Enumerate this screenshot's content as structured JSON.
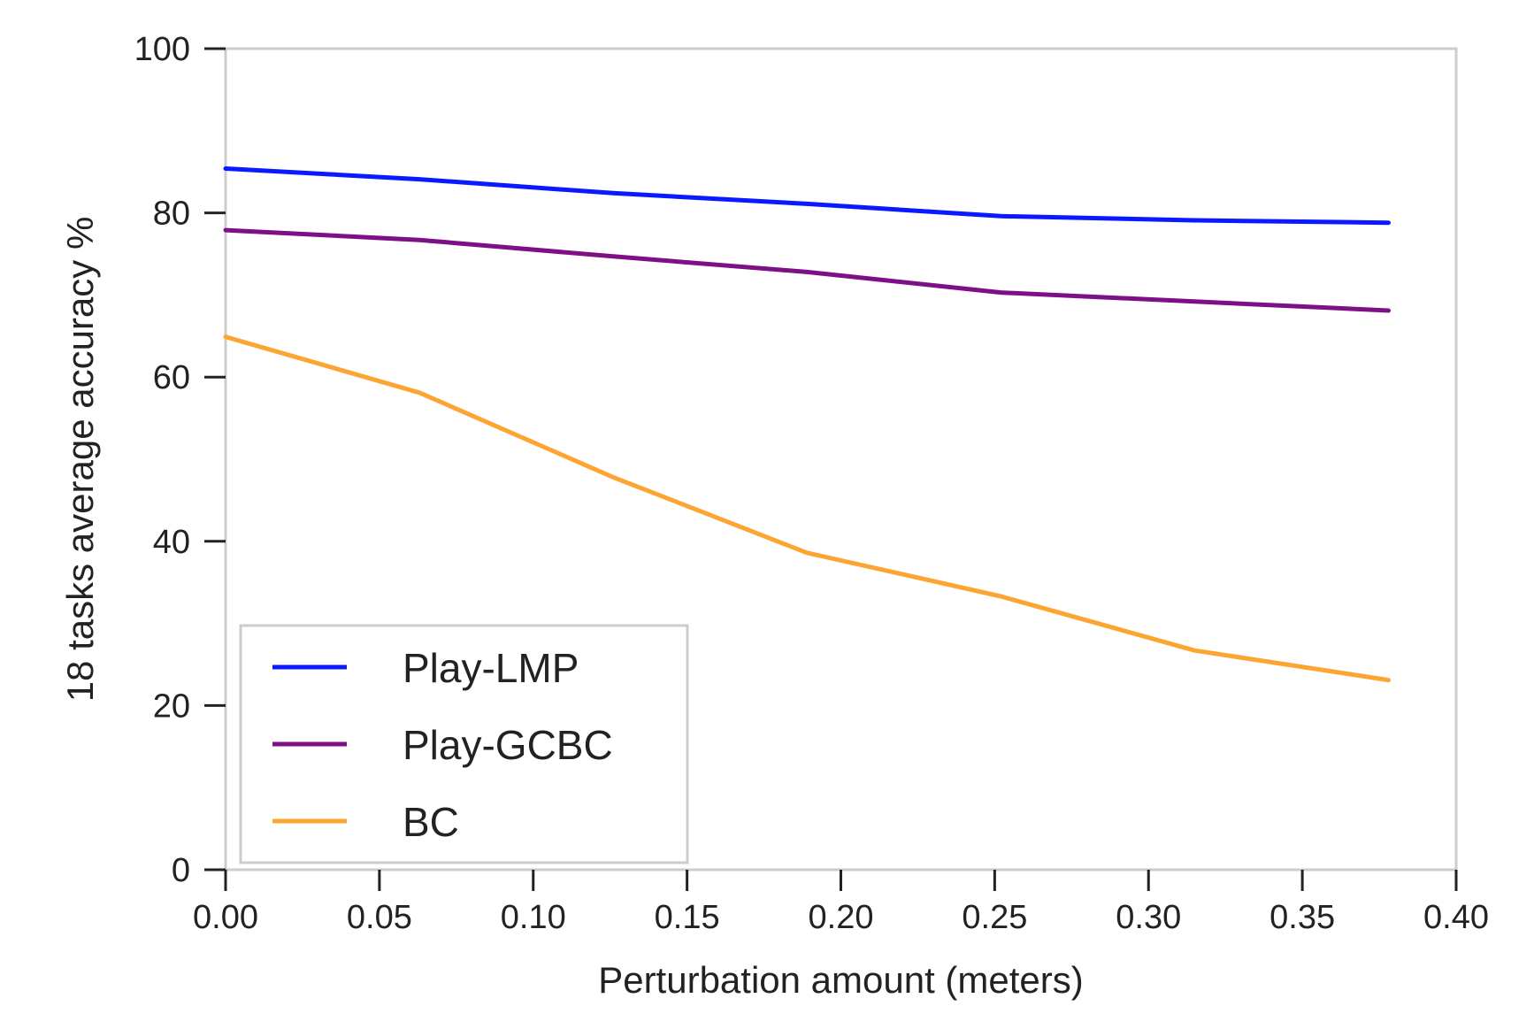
{
  "chart_data": {
    "type": "line",
    "title": "",
    "xlabel": "Perturbation amount (meters)",
    "ylabel": "18 tasks average accuracy %",
    "xlim": [
      0.0,
      0.4
    ],
    "ylim": [
      0,
      100
    ],
    "x_ticks": [
      "0.00",
      "0.05",
      "0.10",
      "0.15",
      "0.20",
      "0.25",
      "0.30",
      "0.35",
      "0.40"
    ],
    "y_ticks": [
      "0",
      "20",
      "40",
      "60",
      "80",
      "100"
    ],
    "grid": false,
    "legend_position": "bottom-left",
    "x": [
      0.0,
      0.063,
      0.126,
      0.189,
      0.252,
      0.315,
      0.378
    ],
    "series": [
      {
        "name": "Play-LMP",
        "color": "#0a1aff",
        "values": [
          85.4,
          84.1,
          82.4,
          81.1,
          79.6,
          79.1,
          78.8
        ]
      },
      {
        "name": "Play-GCBC",
        "color": "#7d0f87",
        "values": [
          77.9,
          76.7,
          74.7,
          72.8,
          70.3,
          69.2,
          68.1
        ]
      },
      {
        "name": "BC",
        "color": "#fca532",
        "values": [
          64.9,
          58.1,
          47.8,
          38.6,
          33.3,
          26.7,
          23.1
        ]
      }
    ]
  }
}
